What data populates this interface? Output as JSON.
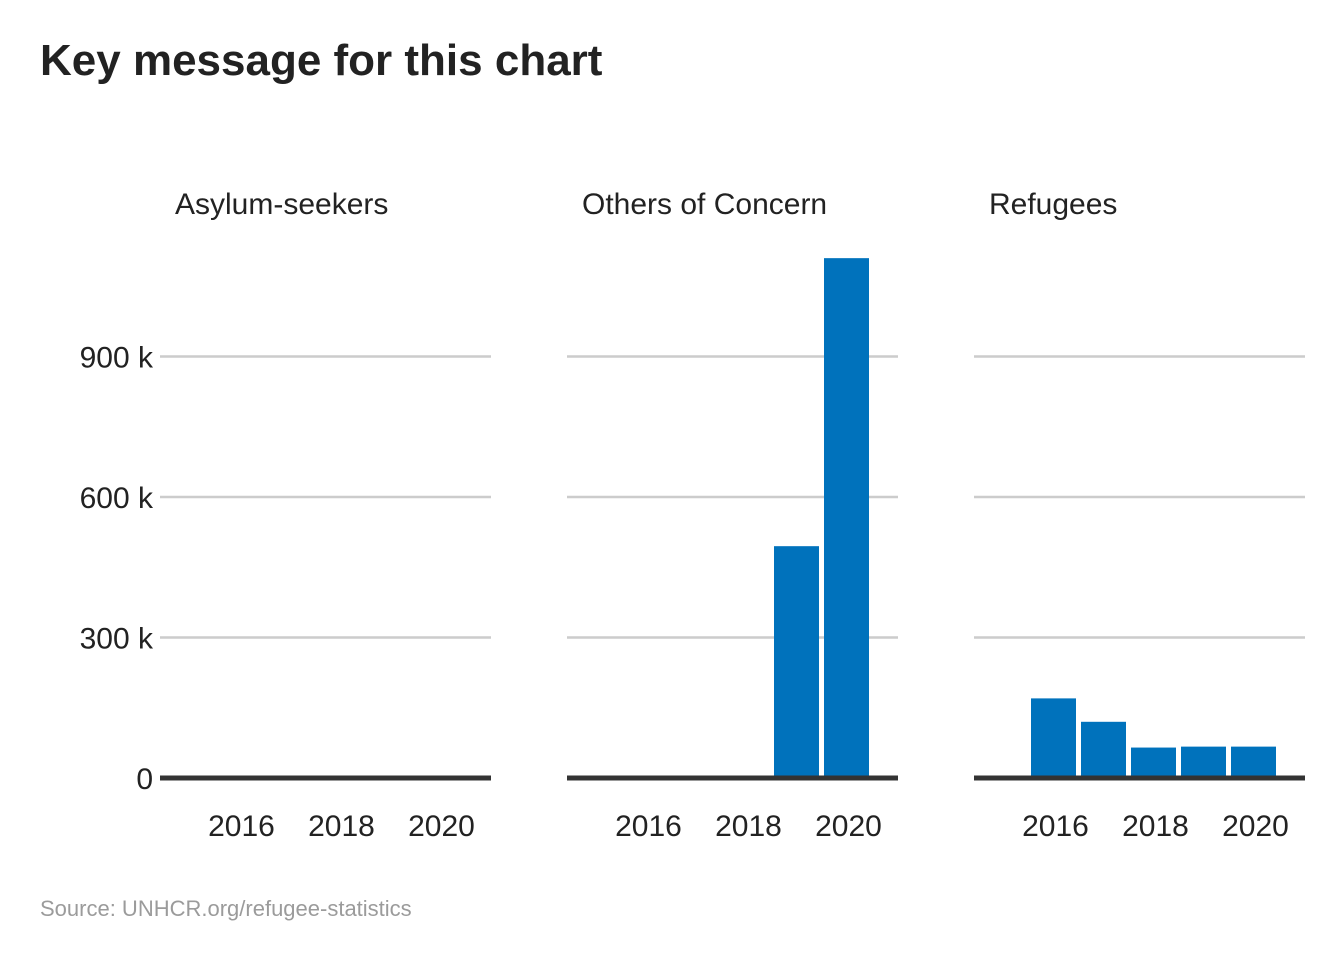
{
  "title": "Key message for this chart",
  "source": "Source: UNHCR.org/refugee-statistics",
  "colors": {
    "bar": "#0072bc",
    "grid": "#cccccc",
    "baseline": "#333333",
    "text": "#222222",
    "source": "#9b9b9b"
  },
  "chart_data": {
    "type": "bar",
    "layout": "small-multiples",
    "categories": [
      2016,
      2017,
      2018,
      2019,
      2020
    ],
    "ylim": [
      0,
      1200000
    ],
    "y_ticks": [
      {
        "value": 0,
        "label": "0"
      },
      {
        "value": 300000,
        "label": "300 k"
      },
      {
        "value": 600000,
        "label": "600 k"
      },
      {
        "value": 900000,
        "label": "900 k"
      }
    ],
    "x_tick_labels": [
      "2016",
      "2018",
      "2020"
    ],
    "grid": true,
    "series": [
      {
        "name": "Asylum-seekers",
        "values": [
          0,
          0,
          0,
          0,
          0
        ]
      },
      {
        "name": "Others of Concern",
        "values": [
          0,
          0,
          0,
          495000,
          1110000
        ]
      },
      {
        "name": "Refugees",
        "values": [
          170000,
          120000,
          65000,
          67000,
          67000
        ]
      }
    ]
  }
}
